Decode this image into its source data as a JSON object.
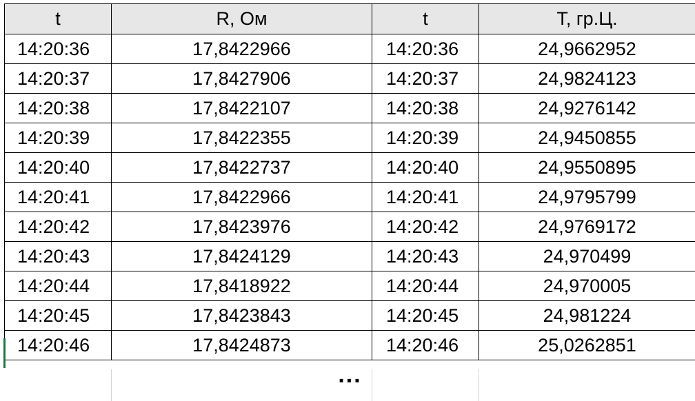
{
  "table": {
    "headers": [
      "t",
      "R, Ом",
      "t",
      "T, гр.Ц."
    ],
    "rows": [
      [
        "14:20:36",
        "17,8422966",
        "14:20:36",
        "24,9662952"
      ],
      [
        "14:20:37",
        "17,8427906",
        "14:20:37",
        "24,9824123"
      ],
      [
        "14:20:38",
        "17,8422107",
        "14:20:38",
        "24,9276142"
      ],
      [
        "14:20:39",
        "17,8422355",
        "14:20:39",
        "24,9450855"
      ],
      [
        "14:20:40",
        "17,8422737",
        "14:20:40",
        "24,9550895"
      ],
      [
        "14:20:41",
        "17,8422966",
        "14:20:41",
        "24,9795799"
      ],
      [
        "14:20:42",
        "17,8423976",
        "14:20:42",
        "24,9769172"
      ],
      [
        "14:20:43",
        "17,8424129",
        "14:20:43",
        "24,970499"
      ],
      [
        "14:20:44",
        "17,8418922",
        "14:20:44",
        "24,970005"
      ],
      [
        "14:20:45",
        "17,8423843",
        "14:20:45",
        "24,981224"
      ],
      [
        "14:20:46",
        "17,8424873",
        "14:20:46",
        "25,0262851"
      ]
    ],
    "continuation": "..."
  },
  "colors": {
    "header_bg": "#e7e7e7",
    "border": "#000000",
    "active_cell_marker": "#217346"
  }
}
